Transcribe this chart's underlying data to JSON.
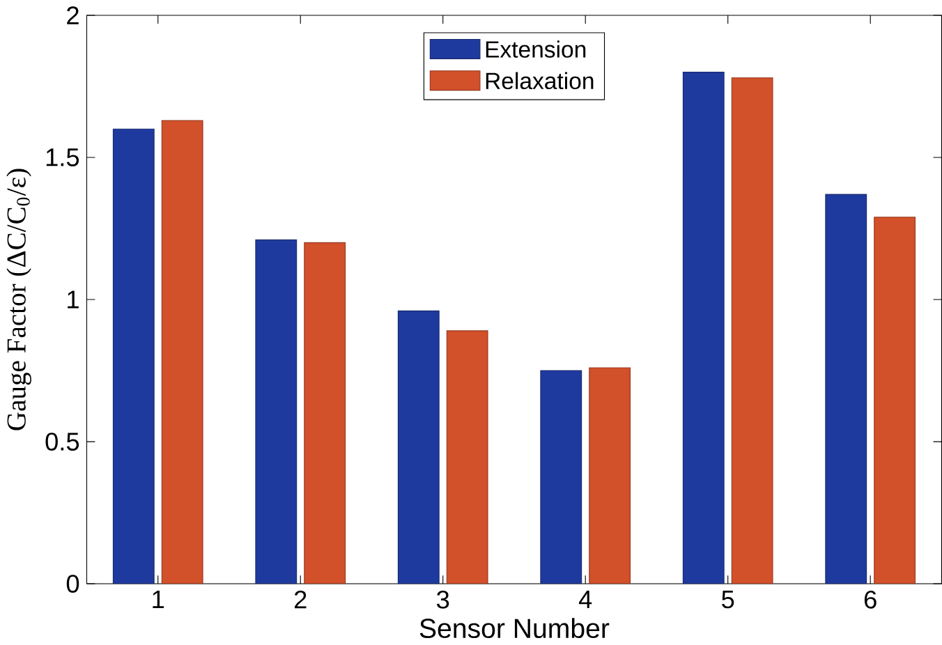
{
  "chart_data": {
    "type": "bar",
    "xlabel": "Sensor Number",
    "ylabel": "Gauge Factor (ΔC/C$_{0}$/ε)",
    "categories": [
      "1",
      "2",
      "3",
      "4",
      "5",
      "6"
    ],
    "series": [
      {
        "name": "Extension",
        "color": "#1f3a9e",
        "values": [
          1.6,
          1.21,
          0.96,
          0.75,
          1.8,
          1.37
        ]
      },
      {
        "name": "Relaxation",
        "color": "#d2502a",
        "values": [
          1.63,
          1.2,
          0.89,
          0.76,
          1.78,
          1.29
        ]
      }
    ],
    "ylim": [
      0,
      2
    ],
    "yticks": [
      0,
      0.5,
      1,
      1.5,
      2
    ],
    "legend": "top"
  }
}
